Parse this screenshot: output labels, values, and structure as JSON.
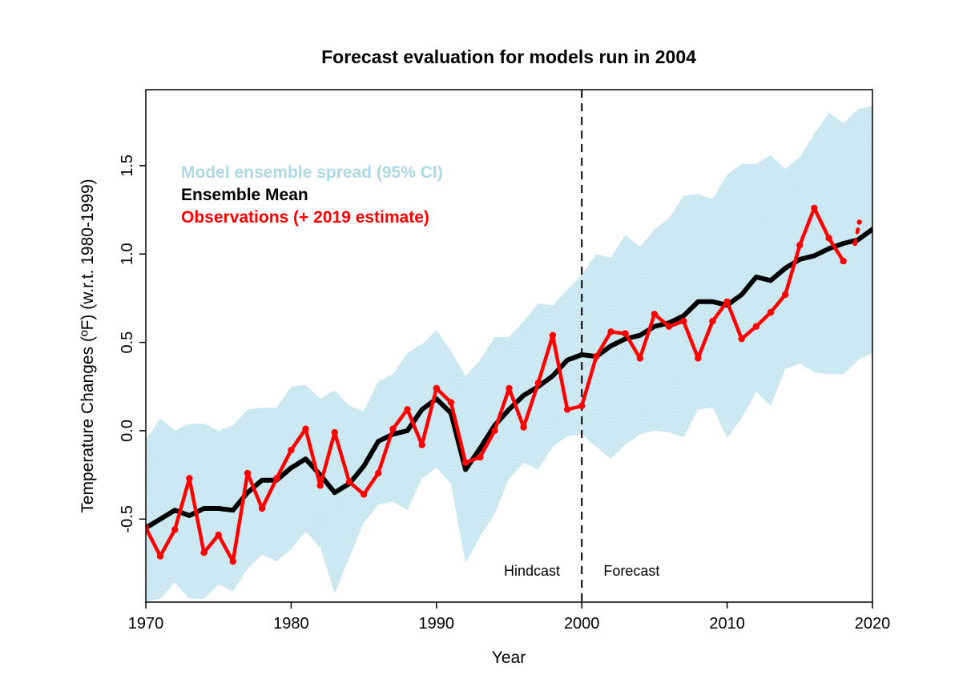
{
  "chart_data": {
    "type": "line",
    "title": "Forecast evaluation for models run in 2004",
    "xlabel": "Year",
    "ylabel": "Temperature Changes (ºF) (w.r.t. 1980-1999)",
    "xlim": [
      1970,
      2020
    ],
    "ylim": [
      -0.97,
      1.93
    ],
    "x_ticks": [
      1970,
      1980,
      1990,
      2000,
      2010,
      2020
    ],
    "y_ticks": [
      -0.5,
      0.0,
      0.5,
      1.0,
      1.5
    ],
    "y_tick_labels": [
      "-0.5",
      "0.0",
      "0.5",
      "1.0",
      "1.5"
    ],
    "grid": false,
    "legend_position": "top-left",
    "colors": {
      "spread": "#add8e6",
      "mean": "#000000",
      "obs": "#ff0000"
    },
    "vertical_line": {
      "x": 2000,
      "style": "dashed"
    },
    "annotations": [
      {
        "text": "Hindcast",
        "x": 1998.5,
        "y": -0.82,
        "anchor": "end"
      },
      {
        "text": "Forecast",
        "x": 2001.5,
        "y": -0.82,
        "anchor": "start"
      }
    ],
    "legend": [
      {
        "label": "Model ensemble spread (95% CI)",
        "color": "#add8e6"
      },
      {
        "label": "Ensemble Mean",
        "color": "#000000"
      },
      {
        "label": "Observations (+ 2019 estimate)",
        "color": "#ff0000"
      }
    ],
    "x": [
      1970,
      1971,
      1972,
      1973,
      1974,
      1975,
      1976,
      1977,
      1978,
      1979,
      1980,
      1981,
      1982,
      1983,
      1984,
      1985,
      1986,
      1987,
      1988,
      1989,
      1990,
      1991,
      1992,
      1993,
      1994,
      1995,
      1996,
      1997,
      1998,
      1999,
      2000,
      2001,
      2002,
      2003,
      2004,
      2005,
      2006,
      2007,
      2008,
      2009,
      2010,
      2011,
      2012,
      2013,
      2014,
      2015,
      2016,
      2017,
      2018,
      2019,
      2020
    ],
    "series": [
      {
        "name": "Model ensemble spread (95% CI)",
        "type": "band",
        "upper": [
          -0.05,
          0.07,
          0.0,
          0.04,
          0.04,
          0.0,
          0.03,
          0.12,
          0.13,
          0.13,
          0.25,
          0.26,
          0.18,
          0.23,
          0.14,
          0.11,
          0.28,
          0.32,
          0.44,
          0.49,
          0.57,
          0.45,
          0.31,
          0.4,
          0.53,
          0.53,
          0.62,
          0.72,
          0.71,
          0.8,
          0.88,
          1.0,
          0.98,
          1.11,
          1.04,
          1.14,
          1.2,
          1.33,
          1.34,
          1.31,
          1.45,
          1.51,
          1.51,
          1.56,
          1.48,
          1.55,
          1.68,
          1.8,
          1.74,
          1.82,
          1.84
        ],
        "lower": [
          -0.97,
          -0.95,
          -0.86,
          -0.95,
          -0.95,
          -0.87,
          -0.91,
          -0.78,
          -0.7,
          -0.74,
          -0.67,
          -0.57,
          -0.66,
          -0.92,
          -0.72,
          -0.52,
          -0.42,
          -0.4,
          -0.45,
          -0.27,
          -0.21,
          -0.3,
          -0.75,
          -0.6,
          -0.47,
          -0.27,
          -0.18,
          -0.22,
          -0.09,
          -0.03,
          -0.02,
          -0.09,
          -0.16,
          -0.08,
          -0.02,
          0.0,
          -0.01,
          -0.04,
          0.12,
          0.13,
          -0.04,
          0.07,
          0.22,
          0.14,
          0.35,
          0.38,
          0.33,
          0.32,
          0.32,
          0.4,
          0.44
        ]
      },
      {
        "name": "Ensemble Mean",
        "values": [
          -0.55,
          -0.5,
          -0.45,
          -0.48,
          -0.44,
          -0.44,
          -0.45,
          -0.35,
          -0.28,
          -0.28,
          -0.21,
          -0.16,
          -0.25,
          -0.35,
          -0.3,
          -0.2,
          -0.06,
          -0.02,
          0.0,
          0.12,
          0.18,
          0.1,
          -0.22,
          -0.1,
          0.03,
          0.12,
          0.2,
          0.25,
          0.31,
          0.4,
          0.43,
          0.42,
          0.48,
          0.52,
          0.54,
          0.59,
          0.61,
          0.65,
          0.73,
          0.73,
          0.71,
          0.77,
          0.87,
          0.85,
          0.92,
          0.97,
          0.99,
          1.03,
          1.06,
          1.08,
          1.14
        ]
      },
      {
        "name": "Observations (+ 2019 estimate)",
        "x": [
          1970,
          1971,
          1972,
          1973,
          1974,
          1975,
          1976,
          1977,
          1978,
          1979,
          1980,
          1981,
          1982,
          1983,
          1984,
          1985,
          1986,
          1987,
          1988,
          1989,
          1990,
          1991,
          1992,
          1993,
          1994,
          1995,
          1996,
          1997,
          1998,
          1999,
          2000,
          2001,
          2002,
          2003,
          2004,
          2005,
          2006,
          2007,
          2008,
          2009,
          2010,
          2011,
          2012,
          2013,
          2014,
          2015,
          2016,
          2017,
          2018
        ],
        "values": [
          -0.55,
          -0.71,
          -0.56,
          -0.27,
          -0.69,
          -0.59,
          -0.74,
          -0.24,
          -0.44,
          -0.27,
          -0.11,
          0.01,
          -0.31,
          -0.01,
          -0.29,
          -0.36,
          -0.24,
          0.01,
          0.12,
          -0.08,
          0.24,
          0.16,
          -0.18,
          -0.15,
          0.0,
          0.24,
          0.02,
          0.27,
          0.54,
          0.12,
          0.14,
          0.42,
          0.56,
          0.55,
          0.41,
          0.66,
          0.59,
          0.62,
          0.41,
          0.62,
          0.73,
          0.52,
          0.59,
          0.67,
          0.77,
          1.05,
          1.26,
          1.09,
          0.96
        ],
        "estimate": {
          "x": [
            2018.8,
            2019.1
          ],
          "values": [
            1.06,
            1.18
          ]
        }
      }
    ]
  }
}
